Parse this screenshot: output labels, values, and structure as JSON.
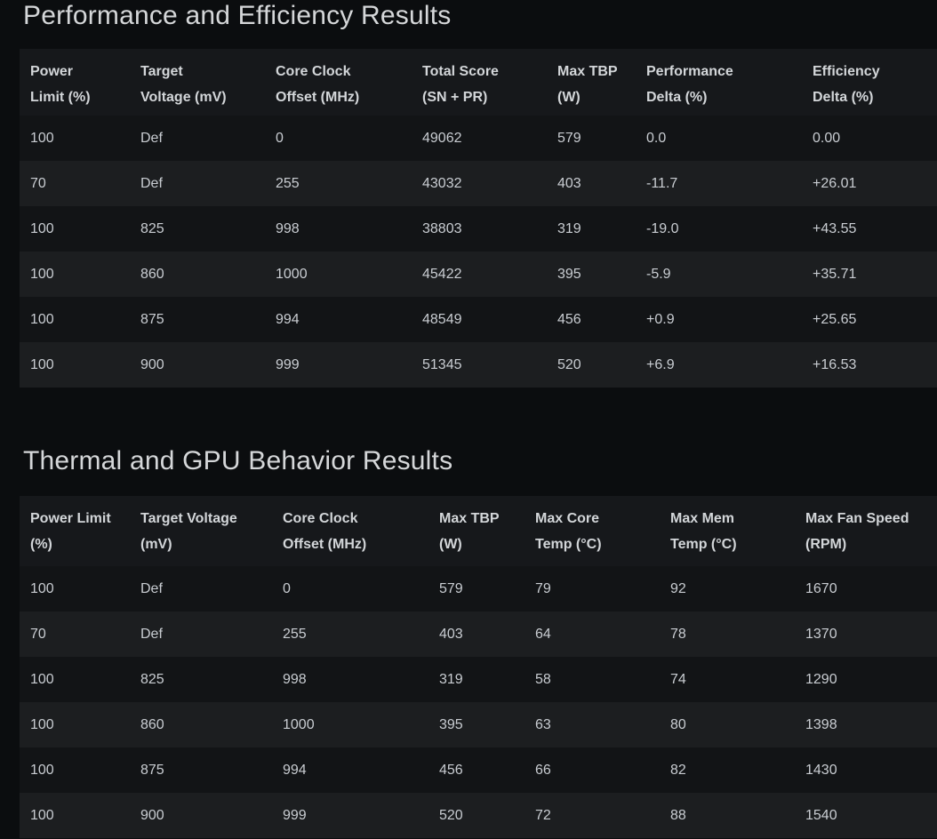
{
  "theme": {
    "page_background": "#0b0d0f",
    "header_background": "#16181b",
    "row_odd_background": "#121416",
    "row_even_background": "#1c1e20",
    "cell_text_color": "#c9cdd2",
    "title_text_color": "#d5d7d9"
  },
  "sections": [
    {
      "title": "Performance and Efficiency Results",
      "table": {
        "headers": [
          {
            "lines": [
              "Power",
              "Limit (%)"
            ]
          },
          {
            "lines": [
              "Target",
              "Voltage (mV)"
            ]
          },
          {
            "lines": [
              "Core Clock",
              "Offset (MHz)"
            ]
          },
          {
            "lines": [
              "Total Score",
              "(SN + PR)"
            ]
          },
          {
            "lines": [
              "Max TBP",
              "(W)"
            ]
          },
          {
            "lines": [
              "Performance",
              "Delta (%)"
            ]
          },
          {
            "lines": [
              "Efficiency",
              "Delta (%)"
            ]
          }
        ],
        "rows": [
          [
            "100",
            "Def",
            "0",
            "49062",
            "579",
            "0.0",
            "0.00"
          ],
          [
            "70",
            "Def",
            "255",
            "43032",
            "403",
            "-11.7",
            "+26.01"
          ],
          [
            "100",
            "825",
            "998",
            "38803",
            "319",
            "-19.0",
            "+43.55"
          ],
          [
            "100",
            "860",
            "1000",
            "45422",
            "395",
            "-5.9",
            "+35.71"
          ],
          [
            "100",
            "875",
            "994",
            "48549",
            "456",
            "+0.9",
            "+25.65"
          ],
          [
            "100",
            "900",
            "999",
            "51345",
            "520",
            "+6.9",
            "+16.53"
          ]
        ]
      }
    },
    {
      "title": "Thermal and GPU Behavior Results",
      "table": {
        "headers": [
          {
            "lines": [
              "Power Limit",
              "(%)"
            ]
          },
          {
            "lines": [
              "Target Voltage",
              "(mV)"
            ]
          },
          {
            "lines": [
              "Core Clock",
              "Offset (MHz)"
            ]
          },
          {
            "lines": [
              "Max TBP",
              "(W)"
            ]
          },
          {
            "lines": [
              "Max Core",
              "Temp (°C)"
            ]
          },
          {
            "lines": [
              "Max Mem",
              "Temp (°C)"
            ]
          },
          {
            "lines": [
              "Max Fan Speed",
              "(RPM)"
            ]
          }
        ],
        "rows": [
          [
            "100",
            "Def",
            "0",
            "579",
            "79",
            "92",
            "1670"
          ],
          [
            "70",
            "Def",
            "255",
            "403",
            "64",
            "78",
            "1370"
          ],
          [
            "100",
            "825",
            "998",
            "319",
            "58",
            "74",
            "1290"
          ],
          [
            "100",
            "860",
            "1000",
            "395",
            "63",
            "80",
            "1398"
          ],
          [
            "100",
            "875",
            "994",
            "456",
            "66",
            "82",
            "1430"
          ],
          [
            "100",
            "900",
            "999",
            "520",
            "72",
            "88",
            "1540"
          ]
        ]
      }
    }
  ]
}
